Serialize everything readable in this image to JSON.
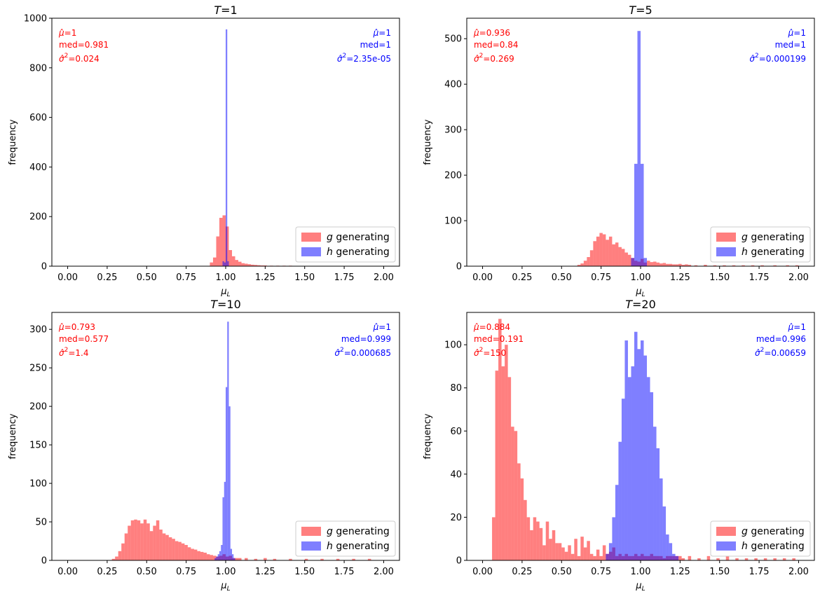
{
  "colors": {
    "g": "#ff0000",
    "h": "#0000ff",
    "overlap": "#800080"
  },
  "legend": {
    "g_var": "g",
    "g_text": " generating",
    "h_var": "h",
    "h_text": " generating"
  },
  "shared": {
    "xlabel_main": "μ",
    "xlabel_sub": "L",
    "ylabel": "frequency",
    "title_prefix": "T",
    "xticks": [
      0.0,
      0.25,
      0.5,
      0.75,
      1.0,
      1.25,
      1.5,
      1.75,
      2.0
    ],
    "xtick_labels": [
      "0.00",
      "0.25",
      "0.50",
      "0.75",
      "1.00",
      "1.25",
      "1.50",
      "1.75",
      "2.00"
    ]
  },
  "chart_data": [
    {
      "type": "bar",
      "title": "T=1",
      "title_value": "=1",
      "xlim": [
        -0.1,
        2.1
      ],
      "ylim": [
        0,
        1000
      ],
      "yticks": [
        0,
        200,
        400,
        600,
        800,
        1000
      ],
      "stats": {
        "g": {
          "mu": "=1",
          "med": "med=0.981",
          "var": "=0.024"
        },
        "h": {
          "mu": "=1",
          "med": "med=1",
          "var": "=2.35e-05"
        }
      },
      "series": [
        {
          "name": "g generating",
          "bin_width": 0.02,
          "x": [
            0.91,
            0.93,
            0.95,
            0.97,
            0.99,
            1.01,
            1.03,
            1.05,
            1.07,
            1.09,
            1.11,
            1.13,
            1.15,
            1.17,
            1.19,
            1.21,
            1.23,
            1.25,
            1.29,
            1.33,
            1.37,
            1.41
          ],
          "values": [
            15,
            35,
            120,
            195,
            205,
            160,
            65,
            40,
            25,
            18,
            12,
            10,
            8,
            6,
            5,
            4,
            3,
            3,
            2,
            2,
            2,
            2
          ]
        },
        {
          "name": "h generating",
          "bin_width": 0.01,
          "x": [
            0.985,
            0.995,
            1.005,
            1.015
          ],
          "values": [
            20,
            15,
            955,
            20
          ]
        }
      ]
    },
    {
      "type": "bar",
      "title": "T=5",
      "title_value": "=5",
      "xlim": [
        -0.1,
        2.1
      ],
      "ylim": [
        0,
        545
      ],
      "yticks": [
        0,
        100,
        200,
        300,
        400,
        500
      ],
      "stats": {
        "g": {
          "mu": "=0.936",
          "med": "med=0.84",
          "var": "=0.269"
        },
        "h": {
          "mu": "=1",
          "med": "med=1",
          "var": "=0.000199"
        }
      },
      "series": [
        {
          "name": "g generating",
          "bin_width": 0.02,
          "x": [
            0.61,
            0.63,
            0.65,
            0.67,
            0.69,
            0.71,
            0.73,
            0.75,
            0.77,
            0.79,
            0.81,
            0.83,
            0.85,
            0.87,
            0.89,
            0.91,
            0.93,
            0.95,
            0.97,
            0.99,
            1.01,
            1.03,
            1.05,
            1.07,
            1.09,
            1.11,
            1.13,
            1.15,
            1.17,
            1.19,
            1.21,
            1.23,
            1.25,
            1.27,
            1.29,
            1.31,
            1.35,
            1.41,
            1.47,
            1.53,
            1.59,
            1.65,
            1.71,
            1.77,
            1.85,
            1.93,
            1.99
          ],
          "values": [
            3,
            6,
            12,
            20,
            35,
            55,
            65,
            73,
            70,
            58,
            65,
            48,
            52,
            42,
            38,
            30,
            25,
            18,
            12,
            10,
            16,
            8,
            12,
            9,
            10,
            8,
            6,
            7,
            5,
            5,
            4,
            4,
            5,
            3,
            4,
            3,
            2,
            3,
            2,
            2,
            2,
            2,
            2,
            2,
            2,
            2,
            2
          ]
        },
        {
          "name": "h generating",
          "bin_width": 0.02,
          "x": [
            0.95,
            0.97,
            0.99,
            1.01,
            1.03
          ],
          "values": [
            18,
            225,
            517,
            225,
            18
          ]
        }
      ]
    },
    {
      "type": "bar",
      "title": "T=10",
      "title_value": "=10",
      "xlim": [
        -0.1,
        2.1
      ],
      "ylim": [
        0,
        322
      ],
      "yticks": [
        0,
        50,
        100,
        150,
        200,
        250,
        300
      ],
      "stats": {
        "g": {
          "mu": "=0.793",
          "med": "med=0.577",
          "var": "=1.4"
        },
        "h": {
          "mu": "=1",
          "med": "med=0.999",
          "var": "=0.000685"
        }
      },
      "series": [
        {
          "name": "g generating",
          "bin_width": 0.02,
          "x": [
            0.29,
            0.31,
            0.33,
            0.35,
            0.37,
            0.39,
            0.41,
            0.43,
            0.45,
            0.47,
            0.49,
            0.51,
            0.53,
            0.55,
            0.57,
            0.59,
            0.61,
            0.63,
            0.65,
            0.67,
            0.69,
            0.71,
            0.73,
            0.75,
            0.77,
            0.79,
            0.81,
            0.83,
            0.85,
            0.87,
            0.89,
            0.91,
            0.93,
            0.95,
            0.97,
            0.99,
            1.01,
            1.03,
            1.05,
            1.07,
            1.09,
            1.13,
            1.19,
            1.25,
            1.31,
            1.41,
            1.51,
            1.61,
            1.71,
            1.81,
            1.91
          ],
          "values": [
            2,
            5,
            12,
            22,
            35,
            45,
            52,
            53,
            52,
            48,
            53,
            48,
            38,
            45,
            52,
            40,
            35,
            33,
            30,
            28,
            25,
            24,
            22,
            20,
            17,
            15,
            14,
            12,
            11,
            10,
            8,
            7,
            6,
            5,
            6,
            8,
            5,
            6,
            3,
            3,
            3,
            3,
            2,
            3,
            2,
            2,
            2,
            2,
            2,
            2,
            2
          ]
        },
        {
          "name": "h generating",
          "bin_width": 0.01,
          "x": [
            0.935,
            0.945,
            0.955,
            0.965,
            0.975,
            0.985,
            0.995,
            1.005,
            1.015,
            1.025,
            1.035,
            1.045,
            1.055
          ],
          "values": [
            3,
            5,
            8,
            12,
            20,
            82,
            102,
            225,
            310,
            200,
            15,
            8,
            3
          ]
        }
      ]
    },
    {
      "type": "bar",
      "title": "T=20",
      "title_value": "=20",
      "xlim": [
        -0.1,
        2.1
      ],
      "ylim": [
        0,
        115
      ],
      "yticks": [
        0,
        20,
        40,
        60,
        80,
        100
      ],
      "stats": {
        "g": {
          "mu": "=0.884",
          "med": "med=0.191",
          "var": "=150"
        },
        "h": {
          "mu": "=1",
          "med": "med=0.996",
          "var": "=0.00659"
        }
      },
      "series": [
        {
          "name": "g generating",
          "bin_width": 0.02,
          "x": [
            0.07,
            0.09,
            0.11,
            0.13,
            0.15,
            0.17,
            0.19,
            0.21,
            0.23,
            0.25,
            0.27,
            0.29,
            0.31,
            0.33,
            0.35,
            0.37,
            0.39,
            0.41,
            0.43,
            0.45,
            0.47,
            0.49,
            0.51,
            0.53,
            0.55,
            0.57,
            0.59,
            0.61,
            0.63,
            0.65,
            0.67,
            0.69,
            0.71,
            0.73,
            0.75,
            0.77,
            0.79,
            0.81,
            0.83,
            0.85,
            0.87,
            0.89,
            0.91,
            0.93,
            0.95,
            0.97,
            0.99,
            1.01,
            1.03,
            1.05,
            1.07,
            1.09,
            1.11,
            1.13,
            1.15,
            1.17,
            1.19,
            1.21,
            1.23,
            1.25,
            1.27,
            1.31,
            1.37,
            1.43,
            1.49,
            1.55,
            1.61,
            1.67,
            1.73,
            1.79,
            1.85,
            1.91,
            1.97
          ],
          "values": [
            20,
            88,
            112,
            90,
            100,
            85,
            62,
            60,
            45,
            38,
            28,
            20,
            14,
            20,
            18,
            15,
            7,
            18,
            10,
            14,
            8,
            8,
            6,
            4,
            7,
            3,
            10,
            2,
            11,
            6,
            9,
            3,
            2,
            5,
            2,
            7,
            3,
            4,
            6,
            2,
            3,
            2,
            3,
            2,
            2,
            3,
            2,
            3,
            2,
            2,
            3,
            2,
            2,
            2,
            1,
            2,
            2,
            2,
            2,
            2,
            1,
            2,
            1,
            2,
            1,
            2,
            1,
            1,
            1,
            1,
            1,
            1,
            1
          ]
        },
        {
          "name": "h generating",
          "bin_width": 0.02,
          "x": [
            0.79,
            0.81,
            0.83,
            0.85,
            0.87,
            0.89,
            0.91,
            0.93,
            0.95,
            0.97,
            0.99,
            1.01,
            1.03,
            1.05,
            1.07,
            1.09,
            1.11,
            1.13,
            1.15,
            1.17,
            1.19,
            1.21,
            1.23
          ],
          "values": [
            3,
            8,
            20,
            35,
            55,
            75,
            102,
            85,
            90,
            106,
            98,
            102,
            95,
            85,
            78,
            62,
            52,
            38,
            25,
            12,
            8,
            3,
            2
          ]
        }
      ]
    }
  ]
}
